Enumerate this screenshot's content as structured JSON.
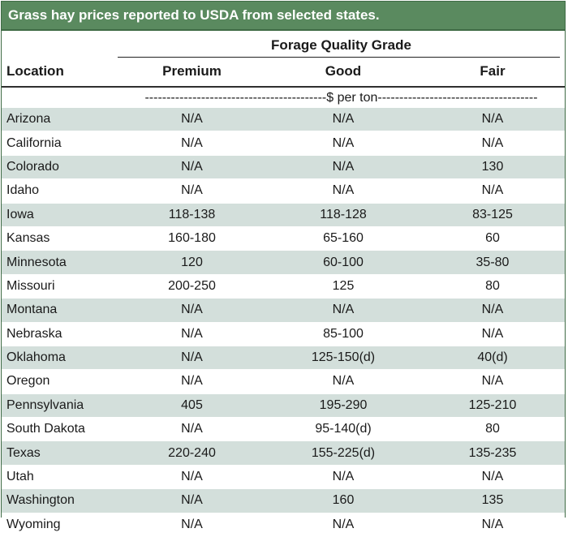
{
  "title": "Grass hay prices reported to USDA from selected states.",
  "header": {
    "grade_group": "Forage Quality Grade",
    "location": "Location",
    "premium": "Premium",
    "good": "Good",
    "fair": "Fair",
    "unit": "------------------------------------------$ per ton-------------------------------------"
  },
  "rows": [
    {
      "location": "Arizona",
      "premium": "N/A",
      "good": "N/A",
      "fair": "N/A"
    },
    {
      "location": "California",
      "premium": "N/A",
      "good": "N/A",
      "fair": "N/A"
    },
    {
      "location": "Colorado",
      "premium": "N/A",
      "good": "N/A",
      "fair": "130"
    },
    {
      "location": "Idaho",
      "premium": "N/A",
      "good": "N/A",
      "fair": "N/A"
    },
    {
      "location": "Iowa",
      "premium": "118-138",
      "good": "118-128",
      "fair": "83-125"
    },
    {
      "location": "Kansas",
      "premium": "160-180",
      "good": "65-160",
      "fair": "60"
    },
    {
      "location": "Minnesota",
      "premium": "120",
      "good": "60-100",
      "fair": "35-80"
    },
    {
      "location": "Missouri",
      "premium": "200-250",
      "good": "125",
      "fair": "80"
    },
    {
      "location": "Montana",
      "premium": "N/A",
      "good": "N/A",
      "fair": "N/A"
    },
    {
      "location": "Nebraska",
      "premium": "N/A",
      "good": "85-100",
      "fair": "N/A"
    },
    {
      "location": "Oklahoma",
      "premium": "N/A",
      "good": "125-150(d)",
      "fair": "40(d)"
    },
    {
      "location": "Oregon",
      "premium": "N/A",
      "good": "N/A",
      "fair": "N/A"
    },
    {
      "location": "Pennsylvania",
      "premium": "405",
      "good": "195-290",
      "fair": "125-210"
    },
    {
      "location": "South Dakota",
      "premium": "N/A",
      "good": "95-140(d)",
      "fair": "80"
    },
    {
      "location": "Texas",
      "premium": "220-240",
      "good": "155-225(d)",
      "fair": "135-235"
    },
    {
      "location": "Utah",
      "premium": "N/A",
      "good": "N/A",
      "fair": "N/A"
    },
    {
      "location": "Washington",
      "premium": "N/A",
      "good": "160",
      "fair": "135"
    },
    {
      "location": "Wyoming",
      "premium": "N/A",
      "good": "N/A",
      "fair": "N/A"
    }
  ],
  "colors": {
    "title_bg": "#5a8a5f",
    "stripe": "#d3dfdb",
    "border": "#3f6b45"
  }
}
